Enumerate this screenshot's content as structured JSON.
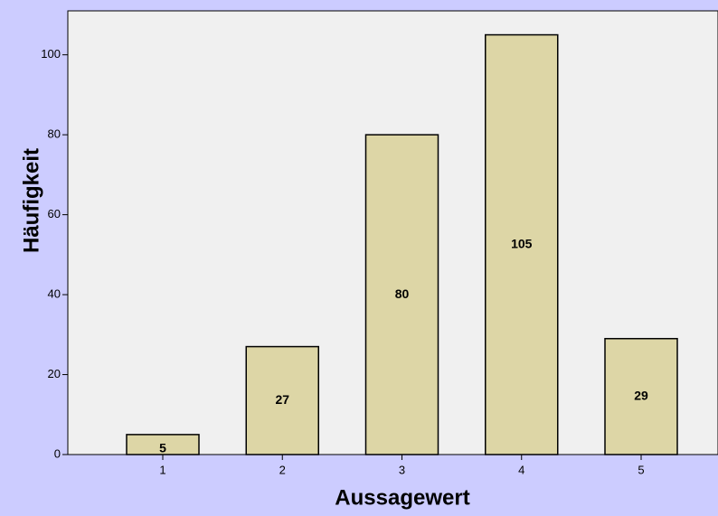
{
  "chart_data": {
    "type": "bar",
    "xlabel": "Aussagewert",
    "ylabel": "Häufigkeit",
    "categories": [
      "1",
      "2",
      "3",
      "4",
      "5"
    ],
    "values": [
      5,
      27,
      80,
      105,
      29
    ],
    "color": "#ddd6a6",
    "ylim": [
      0,
      111
    ],
    "yticks": [
      0,
      20,
      40,
      60,
      80,
      100
    ],
    "grid": false,
    "data_labels": true
  }
}
